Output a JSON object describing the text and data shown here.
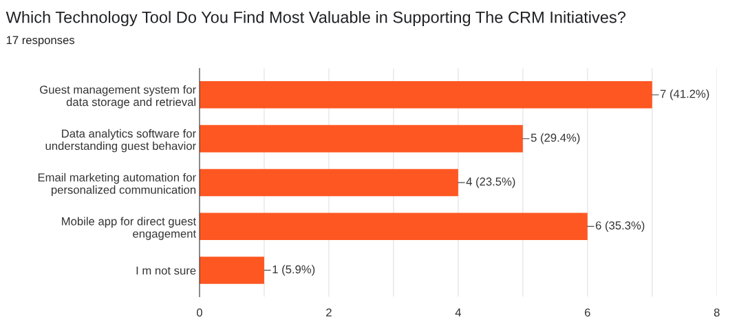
{
  "chart_data": {
    "type": "bar",
    "orientation": "horizontal",
    "title": "Which Technology Tool Do You Find Most Valuable in Supporting The CRM Initiatives?",
    "subtitle": "17 responses",
    "categories": [
      "Guest management system for\ndata storage and retrieval",
      "Data analytics software for\nunderstanding guest behavior",
      "Email marketing automation for\npersonalized communication",
      "Mobile app for direct guest\nengagement",
      "I m not sure"
    ],
    "values": [
      7,
      5,
      4,
      6,
      1
    ],
    "value_labels": [
      "7 (41.2%)",
      "5 (29.4%)",
      "4 (23.5%)",
      "6 (35.3%)",
      "1 (5.9%)"
    ],
    "color": "#ff5722",
    "xlim": [
      0,
      8
    ],
    "xticks": [
      0,
      {
        "value": 1,
        "label": null
      },
      2,
      {
        "value": 3,
        "label": null
      },
      4,
      {
        "value": 5,
        "label": null
      },
      6,
      {
        "value": 7,
        "label": null
      },
      8
    ],
    "grid": "x"
  }
}
